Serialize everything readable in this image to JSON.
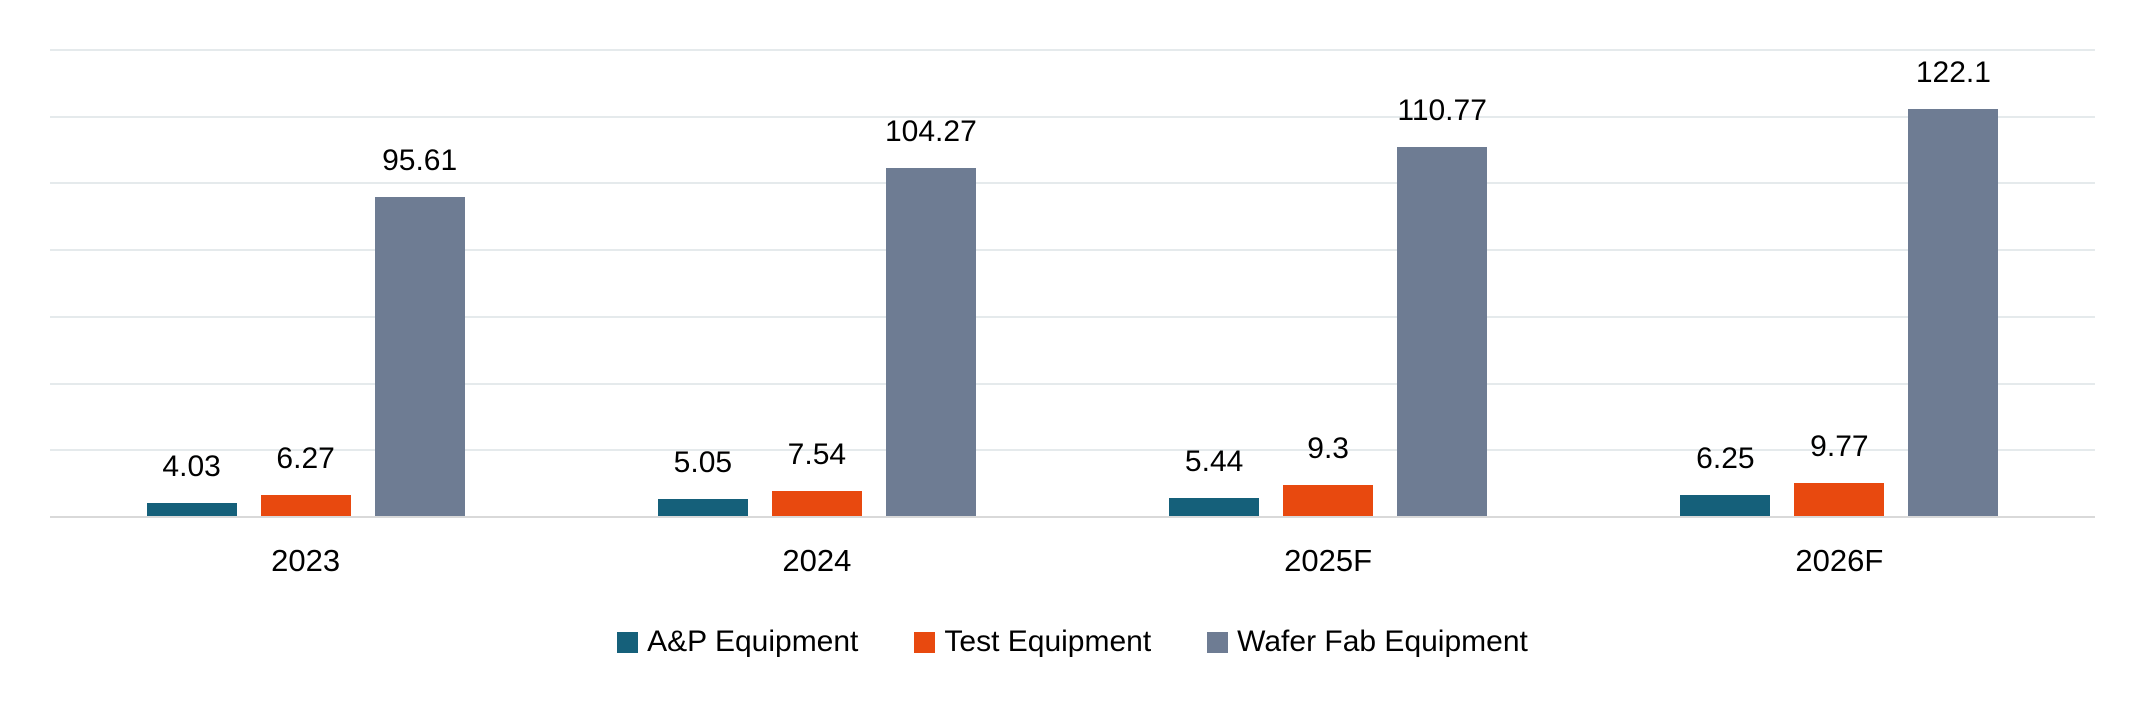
{
  "chart_data": {
    "type": "bar",
    "title": "",
    "xlabel": "",
    "ylabel": "",
    "categories": [
      "2023",
      "2024",
      "2025F",
      "2026F"
    ],
    "series": [
      {
        "name": "A&P Equipment",
        "color": "#15607A",
        "values": [
          4.03,
          5.05,
          5.44,
          6.25
        ]
      },
      {
        "name": "Test Equipment",
        "color": "#E8490F",
        "values": [
          6.27,
          7.54,
          9.3,
          9.77
        ]
      },
      {
        "name": "Wafer Fab Equipment",
        "color": "#6E7C93",
        "values": [
          95.61,
          104.27,
          110.77,
          122.1
        ]
      }
    ],
    "data_labels_shown": true,
    "ylim": [
      0,
      140
    ],
    "gridline_step": 20,
    "grid": true,
    "y_axis_tick_labels_shown": false,
    "legend_position": "bottom"
  },
  "style": {
    "background": "#FFFFFF",
    "gridline_color": "#E5EAEC",
    "axis_color": "#D9D9D9",
    "text_color": "#000000"
  }
}
